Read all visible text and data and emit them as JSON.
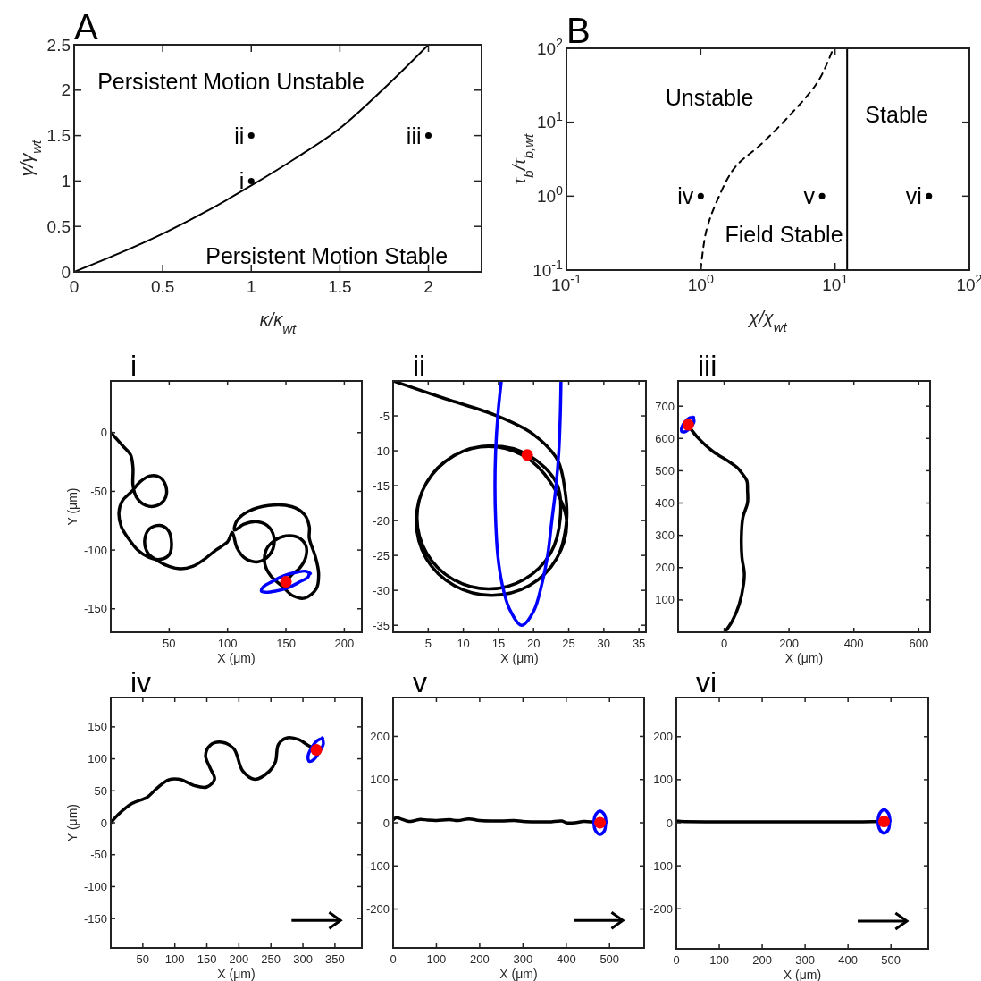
{
  "chart_data": [
    {
      "type": "line",
      "title": "A",
      "xlabel": "κ/κ$_{wt}$",
      "ylabel": "γ/γ$_{wt}$",
      "xlim": [
        0,
        2.3
      ],
      "ylim": [
        0,
        2.5
      ],
      "xticks": [
        0,
        0.5,
        1,
        1.5,
        2
      ],
      "yticks": [
        0,
        0.5,
        1,
        1.5,
        2,
        2.5
      ],
      "series": [
        {
          "type": "line",
          "color": "#000000",
          "x": [
            0,
            0.25,
            0.5,
            0.75,
            1,
            1.25,
            1.5,
            1.75,
            2
          ],
          "values": [
            0,
            0.2,
            0.42,
            0.67,
            0.95,
            1.25,
            1.58,
            2.02,
            2.5
          ]
        },
        {
          "type": "scatter",
          "color": "#000000",
          "marker": "circle",
          "x": [
            1,
            1,
            2
          ],
          "values": [
            1,
            1.5,
            1.5
          ]
        }
      ],
      "annotations": [
        "Persistent Motion Unstable",
        "Persistent Motion Stable",
        {
          "text": "i",
          "x": 1,
          "y": 1
        },
        {
          "text": "ii",
          "x": 1,
          "y": 1.5
        },
        {
          "text": "iii",
          "x": 2,
          "y": 1.5
        }
      ]
    },
    {
      "type": "line",
      "title": "B",
      "xlabel": "χ/χ$_{wt}$",
      "ylabel": "τ$_{b}$/τ$_{b,wt}$",
      "log": "xy",
      "xlim": [
        0.1,
        100
      ],
      "ylim": [
        0.1,
        100
      ],
      "xticks": [
        {
          "value": 0.1,
          "label": "10$^{-1}$"
        },
        {
          "value": 1,
          "label": "10$^{0}$"
        },
        {
          "value": 10,
          "label": "10$^{1}$"
        },
        {
          "value": 100,
          "label": "10$^{2}$"
        }
      ],
      "yticks": [
        {
          "value": 0.1,
          "label": "10$^{-1}$"
        },
        {
          "value": 1,
          "label": "10$^{0}$"
        },
        {
          "value": 10,
          "label": "10$^{1}$"
        },
        {
          "value": 100,
          "label": "10$^{2}$"
        }
      ],
      "series": [
        {
          "type": "line",
          "color": "#000000",
          "line_style": "dashed",
          "x": [
            1,
            1.1,
            1.37,
            1.8,
            2.8,
            4.8,
            7.5,
            9.7
          ],
          "values": [
            0.1,
            0.34,
            1,
            2.46,
            5,
            13.5,
            36,
            100
          ]
        },
        {
          "type": "scatter",
          "color": "#000000",
          "marker": "circle",
          "x": [
            1,
            8,
            50
          ],
          "values": [
            1,
            1,
            1
          ]
        }
      ],
      "ref_lines": [
        {
          "axis": "x",
          "value": 12.3,
          "color": "#000000"
        }
      ],
      "annotations": [
        "Unstable",
        "Stable",
        "Field Stable",
        {
          "text": "iv",
          "x": 1,
          "y": 1
        },
        {
          "text": "v",
          "x": 8,
          "y": 1
        },
        {
          "text": "vi",
          "x": 50,
          "y": 1
        }
      ]
    },
    {
      "type": "line",
      "title": "i",
      "xlabel": "X (μm)",
      "ylabel": "Y (μm)",
      "xlim": [
        0,
        215
      ],
      "ylim": [
        -170,
        44
      ],
      "xticks": [
        50,
        100,
        150,
        200
      ],
      "yticks": [
        -150,
        -100,
        -50,
        0
      ],
      "series": [
        {
          "type": "line",
          "color": "#000000",
          "x": [
            0,
            10,
            17,
            19,
            19,
            22,
            30,
            40,
            47,
            47,
            42,
            33,
            25,
            18,
            10,
            7,
            9,
            15,
            23,
            32,
            42,
            50,
            52,
            49,
            42,
            33,
            29,
            32,
            40,
            50,
            60,
            70,
            80,
            90,
            100,
            104,
            108,
            115,
            126,
            136,
            140,
            136,
            126,
            114,
            106,
            108,
            118,
            135,
            155,
            166,
            170,
            170,
            175,
            178,
            176,
            166,
            156,
            147,
            137,
            132,
            133,
            140,
            150,
            160,
            167,
            167,
            162,
            155,
            150
          ],
          "values": [
            0,
            -11,
            -19,
            -30,
            -45,
            -55,
            -62,
            -62,
            -55,
            -45,
            -38,
            -37,
            -42,
            -50,
            -58,
            -68,
            -80,
            -90,
            -100,
            -106,
            -108,
            -104,
            -94,
            -83,
            -79,
            -82,
            -92,
            -103,
            -109,
            -114,
            -116,
            -114,
            -108,
            -100,
            -93,
            -85,
            -98,
            -107,
            -110,
            -104,
            -93,
            -81,
            -76,
            -78,
            -83,
            -75,
            -67,
            -62,
            -63,
            -70,
            -80,
            -90,
            -105,
            -120,
            -133,
            -141,
            -139,
            -131,
            -122,
            -112,
            -100,
            -92,
            -88,
            -89,
            -96,
            -106,
            -115,
            -121,
            -127
          ]
        },
        {
          "type": "line",
          "color": "#0000ff",
          "x": [
            171,
            167,
            159,
            148,
            138,
            131,
            129,
            133,
            141,
            152,
            162,
            169,
            170
          ],
          "values": [
            -120,
            -118,
            -119,
            -122,
            -127,
            -131,
            -135,
            -136,
            -135,
            -132,
            -127,
            -123,
            -119
          ]
        },
        {
          "type": "scatter",
          "color": "#ff0000",
          "marker": "circle",
          "x": [
            150
          ],
          "values": [
            -127
          ]
        }
      ]
    },
    {
      "type": "line",
      "title": "ii",
      "xlabel": "X (μm)",
      "xlim": [
        0,
        36
      ],
      "ylim": [
        -36,
        0
      ],
      "xticks": [
        5,
        10,
        15,
        20,
        25,
        30,
        35
      ],
      "yticks": [
        -35,
        -30,
        -25,
        -20,
        -15,
        -10,
        -5
      ],
      "series": [
        {
          "type": "line",
          "color": "#000000",
          "x": [
            0,
            7.3,
            14.8,
            19.9,
            23.4,
            24.5,
            24.7,
            23.3,
            19.4,
            14,
            8.7,
            4.7,
            3.3,
            4.7,
            8.7,
            14,
            19.4,
            23.3,
            23.8,
            22.4,
            18.7,
            13.6,
            8.5,
            4.8,
            3.4,
            4.8,
            8.5,
            13.6,
            18.7,
            22.4,
            24.7,
            23.3,
            19.4,
            14,
            8.7,
            4.7,
            3.3,
            4.7,
            8.7,
            14,
            19.1
          ],
          "values": [
            0,
            -2.5,
            -5,
            -7.6,
            -11.3,
            -15.9,
            -20,
            -25.4,
            -29.3,
            -30.7,
            -29.3,
            -25.4,
            -20,
            -14.7,
            -10.7,
            -9.3,
            -10.7,
            -14.7,
            -19.6,
            -24.7,
            -28.4,
            -29.8,
            -28.4,
            -24.7,
            -19.6,
            -14.5,
            -10.8,
            -9.4,
            -10.8,
            -14.5,
            -20,
            -25.4,
            -29.3,
            -30.7,
            -29.3,
            -25.4,
            -20,
            -14.7,
            -10.7,
            -9.3,
            -10.6
          ]
        },
        {
          "type": "line",
          "color": "#0000ff",
          "x": [
            15.4,
            14.9,
            14.6,
            14.5,
            14.6,
            14.9,
            15.5,
            16.5,
            18.3,
            20,
            21.2,
            22,
            22.6,
            23.2,
            23.6,
            23.8,
            23.9
          ],
          "values": [
            0,
            -5,
            -10,
            -15,
            -20,
            -25,
            -29,
            -32.5,
            -35,
            -33,
            -29,
            -25,
            -20,
            -15,
            -10,
            -5,
            0
          ]
        },
        {
          "type": "scatter",
          "color": "#ff0000",
          "marker": "circle",
          "x": [
            19.1
          ],
          "values": [
            -10.6
          ]
        }
      ]
    },
    {
      "type": "line",
      "title": "iii",
      "xlabel": "X (μm)",
      "xlim": [
        -142,
        635
      ],
      "ylim": [
        0,
        778
      ],
      "xticks": [
        0,
        200,
        400,
        600
      ],
      "yticks": [
        100,
        200,
        300,
        400,
        500,
        600,
        700
      ],
      "series": [
        {
          "type": "line",
          "color": "#000000",
          "x": [
            2,
            25,
            46,
            60,
            62,
            55,
            53,
            58,
            72,
            72,
            70,
            55,
            40,
            15,
            -35,
            -78,
            -111
          ],
          "values": [
            0,
            35,
            85,
            150,
            184,
            230,
            295,
            357,
            400,
            440,
            469,
            492,
            510,
            528,
            560,
            599,
            640
          ]
        },
        {
          "type": "line",
          "color": "#0000ff",
          "x": [
            -94,
            -106,
            -121,
            -131,
            -130,
            -118,
            -103,
            -93,
            -96
          ],
          "values": [
            665,
            664,
            651,
            633,
            621,
            622,
            635,
            653,
            666
          ]
        },
        {
          "type": "scatter",
          "color": "#ff0000",
          "marker": "circle",
          "x": [
            -111
          ],
          "values": [
            642
          ]
        }
      ]
    },
    {
      "type": "line",
      "title": "iv",
      "xlabel": "X (μm)",
      "ylabel": "Y (μm)",
      "xlim": [
        0,
        392
      ],
      "ylim": [
        -196,
        196
      ],
      "xticks": [
        50,
        100,
        150,
        200,
        250,
        300,
        350
      ],
      "yticks": [
        -150,
        -100,
        -50,
        0,
        50,
        100,
        150
      ],
      "series": [
        {
          "type": "line",
          "color": "#000000",
          "x": [
            0,
            15,
            33,
            57,
            71,
            90,
            108,
            131,
            150,
            162,
            155,
            148,
            155,
            173,
            192,
            206,
            225,
            248,
            257,
            262,
            276,
            294,
            308,
            321
          ],
          "values": [
            0,
            16,
            30,
            40,
            53,
            67,
            68,
            58,
            56,
            68,
            86,
            105,
            121,
            126,
            116,
            81,
            68,
            81,
            95,
            123,
            133,
            130,
            121,
            114
          ]
        },
        {
          "type": "line",
          "color": "#0000ff",
          "x": [
            331,
            323,
            314,
            308,
            310,
            317,
            326,
            332,
            330
          ],
          "values": [
            132,
            129,
            118,
            104,
            96,
            99,
            111,
            124,
            133
          ]
        },
        {
          "type": "scatter",
          "color": "#ff0000",
          "marker": "circle",
          "x": [
            321
          ],
          "values": [
            114
          ]
        }
      ]
    },
    {
      "type": "line",
      "title": "v",
      "xlabel": "X (μm)",
      "xlim": [
        0,
        580
      ],
      "ylim": [
        -290,
        290
      ],
      "xticks": [
        0,
        100,
        200,
        300,
        400,
        500
      ],
      "yticks": [
        -200,
        -100,
        0,
        100,
        200
      ],
      "series": [
        {
          "type": "line",
          "color": "#000000",
          "x": [
            0,
            8,
            20,
            36,
            50,
            63,
            80,
            100,
            130,
            150,
            175,
            200,
            250,
            280,
            300,
            330,
            360,
            390,
            400,
            420,
            440,
            460,
            478
          ],
          "values": [
            7,
            12,
            8,
            3,
            5,
            8,
            6,
            5,
            7,
            5,
            9,
            5,
            4,
            5,
            3,
            2,
            2,
            4,
            0,
            0,
            3,
            2,
            0
          ]
        },
        {
          "type": "line",
          "color": "#0000ff",
          "x": [
            492,
            488,
            478,
            468,
            464,
            468,
            478,
            488,
            491
          ],
          "values": [
            0,
            19,
            27,
            19,
            0,
            -19,
            -27,
            -19,
            4
          ]
        },
        {
          "type": "scatter",
          "color": "#ff0000",
          "marker": "circle",
          "x": [
            478
          ],
          "values": [
            0
          ]
        }
      ]
    },
    {
      "type": "line",
      "title": "vi",
      "xlabel": "X (μm)",
      "xlim": [
        0,
        587
      ],
      "ylim": [
        -293,
        291
      ],
      "xticks": [
        0,
        100,
        200,
        300,
        400,
        500
      ],
      "yticks": [
        -200,
        -100,
        0,
        100,
        200
      ],
      "series": [
        {
          "type": "line",
          "color": "#000000",
          "x": [
            0,
            10,
            100,
            200,
            300,
            400,
            484
          ],
          "values": [
            4,
            3,
            2,
            2,
            2,
            2,
            3
          ]
        },
        {
          "type": "line",
          "color": "#0000ff",
          "x": [
            498,
            494,
            484,
            474,
            470,
            474,
            484,
            494,
            497
          ],
          "values": [
            3,
            22,
            30,
            22,
            3,
            -16,
            -24,
            -16,
            7
          ]
        },
        {
          "type": "scatter",
          "color": "#ff0000",
          "marker": "circle",
          "x": [
            484
          ],
          "values": [
            3
          ]
        }
      ]
    }
  ]
}
